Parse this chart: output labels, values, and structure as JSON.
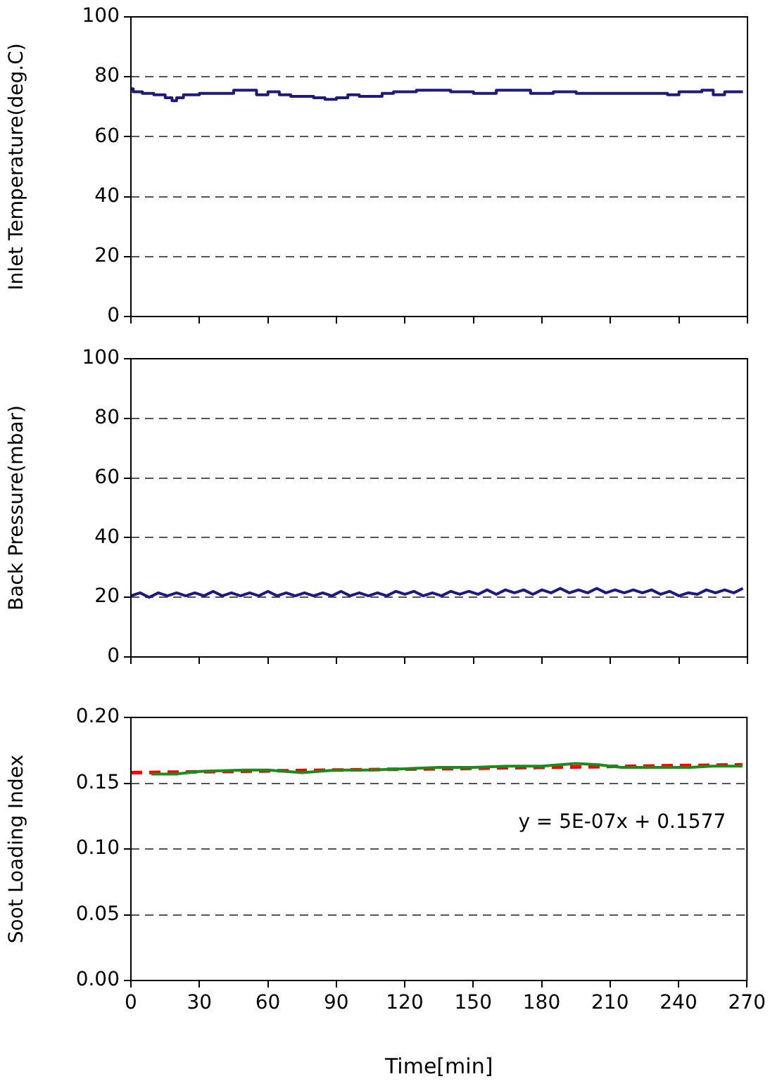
{
  "chart_data": [
    {
      "type": "step",
      "ylabel": "Inlet Temperature(deg.C)",
      "xlim": [
        0,
        270
      ],
      "xticks": [
        0,
        30,
        60,
        90,
        120,
        150,
        180,
        210,
        240,
        270
      ],
      "ylim": [
        0,
        100
      ],
      "yticks": [
        0,
        20,
        40,
        60,
        80,
        100
      ],
      "grid": "y",
      "tick_labels": "y",
      "series": [
        {
          "color": "#1a1a80",
          "x": [
            0,
            1,
            5,
            10,
            15,
            18,
            20,
            23,
            30,
            40,
            45,
            50,
            55,
            60,
            65,
            70,
            80,
            85,
            90,
            95,
            100,
            110,
            115,
            125,
            135,
            140,
            150,
            160,
            170,
            175,
            185,
            195,
            205,
            215,
            225,
            235,
            240,
            250,
            255,
            260,
            268
          ],
          "values": [
            76,
            75,
            74.5,
            74,
            73,
            72,
            73,
            74,
            74.5,
            74.5,
            75.5,
            75.5,
            74,
            75,
            74,
            73.5,
            73,
            72.5,
            73,
            74,
            73.5,
            74.5,
            75,
            75.5,
            75.5,
            75,
            74.5,
            75.5,
            75.5,
            74.5,
            75,
            74.5,
            74.5,
            74.5,
            74.5,
            74,
            75,
            75.5,
            74,
            75,
            75
          ]
        }
      ]
    },
    {
      "type": "line",
      "ylabel": "Back Pressure(mbar)",
      "xlim": [
        0,
        270
      ],
      "xticks": [
        0,
        30,
        60,
        90,
        120,
        150,
        180,
        210,
        240,
        270
      ],
      "ylim": [
        0,
        100
      ],
      "yticks": [
        0,
        20,
        40,
        60,
        80,
        100
      ],
      "grid": "y",
      "tick_labels": "y",
      "series": [
        {
          "color": "#1a1a80",
          "x": [
            0,
            4,
            8,
            12,
            16,
            20,
            24,
            28,
            32,
            36,
            40,
            44,
            48,
            52,
            56,
            60,
            64,
            68,
            72,
            76,
            80,
            84,
            88,
            92,
            96,
            100,
            104,
            108,
            112,
            116,
            120,
            124,
            128,
            132,
            136,
            140,
            144,
            148,
            152,
            156,
            160,
            164,
            168,
            172,
            176,
            180,
            184,
            188,
            192,
            196,
            200,
            204,
            208,
            212,
            216,
            220,
            224,
            228,
            232,
            236,
            240,
            244,
            248,
            252,
            256,
            260,
            264,
            268
          ],
          "values": [
            20.5,
            21.5,
            20,
            21.5,
            20.5,
            21.5,
            20.5,
            21.5,
            20.5,
            22,
            20.5,
            21.5,
            20.5,
            21.5,
            20.5,
            22,
            20.5,
            21.5,
            20.5,
            21.5,
            20.5,
            21.5,
            20.5,
            22,
            20.5,
            21.5,
            20.5,
            21.5,
            20.5,
            22,
            21,
            22,
            20.5,
            21.5,
            20.5,
            22,
            21,
            22,
            21,
            22.5,
            21,
            22.5,
            21.5,
            22.5,
            21,
            22.5,
            21.5,
            23,
            21.5,
            22.5,
            21.5,
            23,
            21.5,
            22.5,
            21.5,
            22.5,
            21.5,
            22.5,
            21,
            22,
            20.5,
            21.5,
            21,
            22.5,
            21.5,
            22.5,
            21.5,
            23
          ]
        }
      ]
    },
    {
      "type": "line",
      "ylabel": "Soot Loading Index",
      "xlabel": "Time[min]",
      "xlim": [
        0,
        270
      ],
      "xticks": [
        0,
        30,
        60,
        90,
        120,
        150,
        180,
        210,
        240,
        270
      ],
      "ylim": [
        0,
        0.2
      ],
      "yticks": [
        {
          "value": 0,
          "label": "0.00"
        },
        {
          "value": 0.05,
          "label": "0.05"
        },
        {
          "value": 0.1,
          "label": "0.10"
        },
        {
          "value": 0.15,
          "label": "0.15"
        },
        {
          "value": 0.2,
          "label": "0.20"
        }
      ],
      "grid": "y",
      "annotations": [
        "y = 5E-07x + 0.1577"
      ],
      "series": [
        {
          "color": "#1a8c1a",
          "x": [
            9,
            20,
            30,
            50,
            60,
            75,
            90,
            105,
            120,
            135,
            150,
            165,
            180,
            195,
            205,
            215,
            230,
            245,
            255,
            268
          ],
          "values": [
            0.157,
            0.157,
            0.159,
            0.16,
            0.16,
            0.158,
            0.16,
            0.16,
            0.161,
            0.162,
            0.162,
            0.163,
            0.163,
            0.165,
            0.164,
            0.162,
            0.162,
            0.162,
            0.163,
            0.163
          ]
        },
        {
          "color": "#ff0000",
          "line_style": "dashed",
          "x": [
            0,
            268
          ],
          "values": [
            0.158,
            0.164
          ]
        }
      ]
    }
  ]
}
